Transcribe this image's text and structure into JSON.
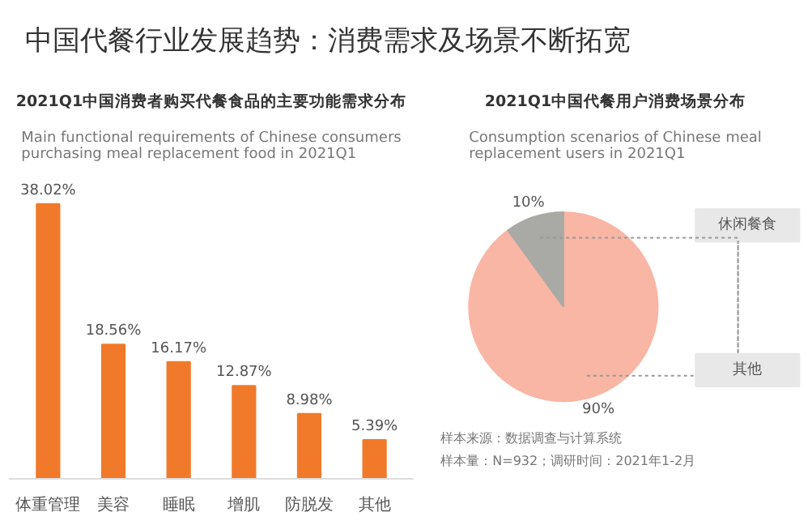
{
  "chart_data": [
    {
      "type": "other",
      "title": "中国代餐行业发展趋势：消费需求及场景不断拓宽"
    },
    {
      "type": "bar",
      "title": "2021Q1中国消费者购买代餐食品的主要功能需求分布",
      "subtitle": "Main functional requirements of Chinese consumers purchasing meal replacement food in 2021Q1",
      "categories": [
        "体重管理",
        "美容",
        "睡眠",
        "增肌",
        "防脱发",
        "其他"
      ],
      "values": [
        38.02,
        18.56,
        16.17,
        12.87,
        8.98,
        5.39
      ],
      "value_labels": [
        "38.02%",
        "18.56%",
        "16.17%",
        "12.87%",
        "8.98%",
        "5.39%"
      ],
      "color": "#f07a2a",
      "grid": false
    },
    {
      "type": "pie",
      "title": "2021Q1中国代餐用户消费场景分布",
      "subtitle": "Consumption scenarios of Chinese meal replacement users in  2021Q1",
      "categories": [
        "休闲餐食",
        "其他"
      ],
      "values": [
        90,
        10
      ],
      "value_labels": [
        "90%",
        "10%"
      ],
      "colors": [
        "#f9b6a4",
        "#a9aaa5"
      ],
      "annotations": [
        "样本来源：数据调查与计算系统",
        "样本量：N=932；调研时间：2021年1-2月"
      ]
    }
  ]
}
